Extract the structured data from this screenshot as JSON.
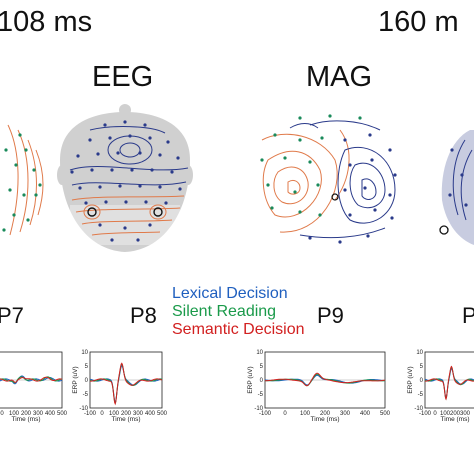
{
  "time_labels": [
    "108 ms",
    "160 m"
  ],
  "modality_labels": [
    "EEG",
    "MAG"
  ],
  "electrode_labels": [
    "P7",
    "P8",
    "P9",
    "P"
  ],
  "legend": [
    {
      "label": "Lexical Decision",
      "color": "#1f5fbf"
    },
    {
      "label": "Silent Reading",
      "color": "#1a9a4a"
    },
    {
      "label": "Semantic Decision",
      "color": "#d22020"
    }
  ],
  "panel_axes": {
    "y_label": "ERP (uV)",
    "x_label": "Time (ms)",
    "y_ticks": [
      "10",
      "5",
      "0",
      "-5",
      "-10"
    ],
    "x_ticks": [
      "-100",
      "0",
      "100",
      "200",
      "300",
      "400",
      "500"
    ]
  },
  "colors": {
    "contour_positive": "#e07a4a",
    "contour_negative": "#2a3a8a",
    "head": "#d0d0d0",
    "sensor_pos": "#2a3a8a",
    "sensor_neg": "#1a8a5a"
  }
}
